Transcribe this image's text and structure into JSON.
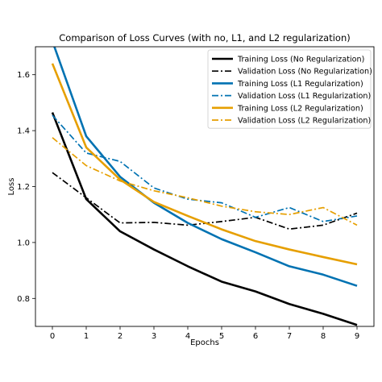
{
  "chart_data": {
    "type": "line",
    "title": "Comparison of Loss Curves (with no, L1, and L2 regularization)",
    "xlabel": "Epochs",
    "ylabel": "Loss",
    "xlim": [
      -0.5,
      9.5
    ],
    "ylim": [
      0.7,
      1.7
    ],
    "x": [
      0,
      1,
      2,
      3,
      4,
      5,
      6,
      7,
      8,
      9
    ],
    "x_ticks": [
      0,
      1,
      2,
      3,
      4,
      5,
      6,
      7,
      8,
      9
    ],
    "y_ticks": [
      0.8,
      1.0,
      1.2,
      1.4,
      1.6
    ],
    "y_tick_labels": [
      "0.8",
      "1.0",
      "1.2",
      "1.4",
      "1.6"
    ],
    "grid": false,
    "legend_position": "top-right",
    "series": [
      {
        "name": "Training Loss (No Regularization)",
        "color": "#000000",
        "style": "solid",
        "values": [
          1.465,
          1.155,
          1.04,
          0.975,
          0.915,
          0.86,
          0.825,
          0.78,
          0.745,
          0.705
        ]
      },
      {
        "name": "Validation Loss (No Regularization)",
        "color": "#000000",
        "style": "dashdot",
        "values": [
          1.25,
          1.16,
          1.07,
          1.072,
          1.062,
          1.075,
          1.09,
          1.048,
          1.062,
          1.105
        ]
      },
      {
        "name": "Training Loss (L1 Regularization)",
        "color": "#0072B2",
        "style": "solid",
        "values": [
          1.72,
          1.38,
          1.235,
          1.142,
          1.07,
          1.012,
          0.965,
          0.915,
          0.885,
          0.845
        ]
      },
      {
        "name": "Validation Loss (L1 Regularization)",
        "color": "#0072B2",
        "style": "dashdot",
        "values": [
          1.455,
          1.32,
          1.29,
          1.195,
          1.155,
          1.142,
          1.09,
          1.125,
          1.075,
          1.095
        ]
      },
      {
        "name": "Training Loss (L2 Regularization)",
        "color": "#E69F00",
        "style": "solid",
        "values": [
          1.64,
          1.34,
          1.225,
          1.145,
          1.095,
          1.047,
          1.005,
          0.975,
          0.948,
          0.922
        ]
      },
      {
        "name": "Validation Loss (L2 Regularization)",
        "color": "#E69F00",
        "style": "dashdot",
        "values": [
          1.375,
          1.275,
          1.22,
          1.185,
          1.16,
          1.13,
          1.11,
          1.1,
          1.125,
          1.062
        ]
      }
    ]
  }
}
